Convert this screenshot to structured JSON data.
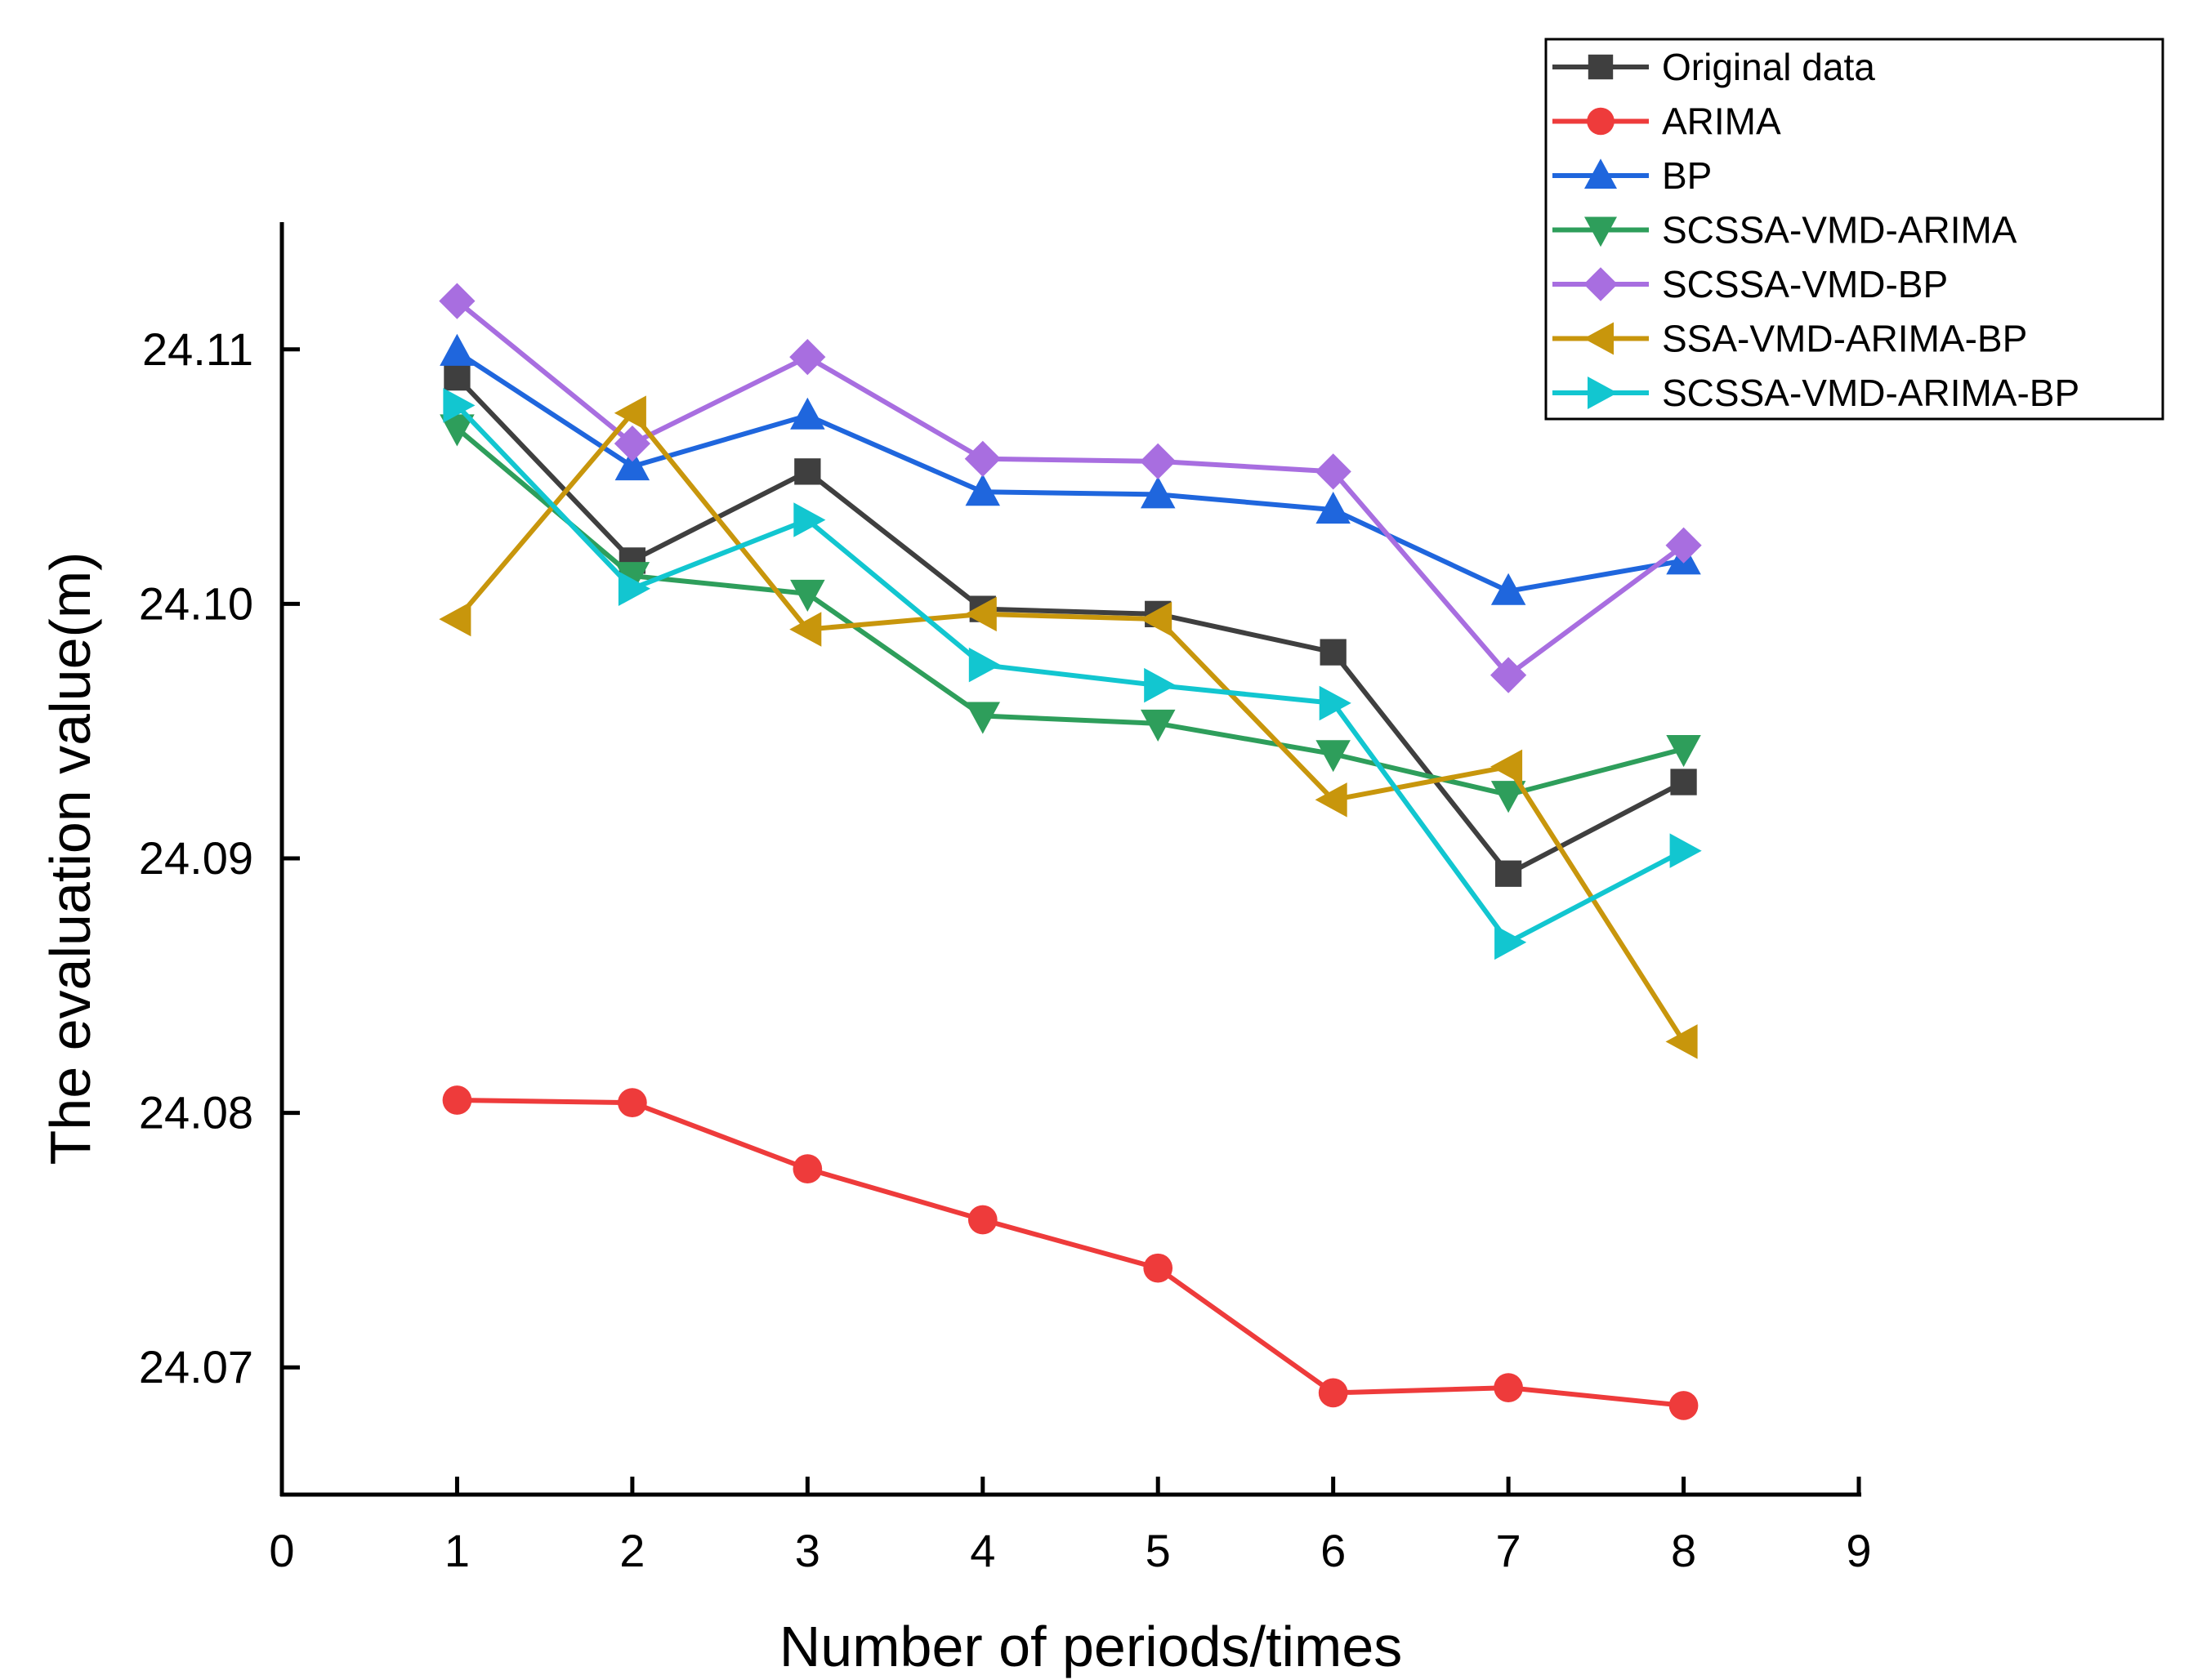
{
  "chart_data": {
    "type": "line",
    "title": "",
    "xlabel": "Number of periods/times",
    "ylabel": "The evaluation value(m)",
    "xlim": [
      0,
      9
    ],
    "ylim": [
      24.065,
      24.115
    ],
    "xticks": [
      0,
      1,
      2,
      3,
      4,
      5,
      6,
      7,
      8,
      9
    ],
    "xtick_labels": [
      "0",
      "1",
      "2",
      "3",
      "4",
      "5",
      "6",
      "7",
      "8",
      "9"
    ],
    "yticks": [
      24.07,
      24.08,
      24.09,
      24.1,
      24.11
    ],
    "ytick_labels": [
      "24.07",
      "24.08",
      "24.09",
      "24.10",
      "24.11"
    ],
    "grid": false,
    "legend_position": "top-right",
    "x": [
      1,
      2,
      3,
      4,
      5,
      6,
      7,
      8
    ],
    "series": [
      {
        "name": "Original data",
        "marker": "square",
        "color": "#3f3f3f",
        "values": [
          24.1089,
          24.1017,
          24.1052,
          24.0998,
          24.0996,
          24.0981,
          24.0894,
          24.093
        ]
      },
      {
        "name": "ARIMA",
        "marker": "circle",
        "color": "#ee3b3b",
        "values": [
          24.0805,
          24.0804,
          24.0778,
          24.0758,
          24.0739,
          24.069,
          24.0692,
          24.0685
        ]
      },
      {
        "name": "BP",
        "marker": "triangle-up",
        "color": "#1f66dd",
        "values": [
          24.1099,
          24.1054,
          24.1074,
          24.1044,
          24.1043,
          24.1037,
          24.1005,
          24.1017
        ]
      },
      {
        "name": "SCSSA-VMD-ARIMA",
        "marker": "triangle-down",
        "color": "#2e9e5b",
        "values": [
          24.1069,
          24.1011,
          24.1004,
          24.0956,
          24.0953,
          24.0941,
          24.0925,
          24.0943
        ]
      },
      {
        "name": "SCSSA-VMD-BP",
        "marker": "diamond",
        "color": "#a86ee0",
        "values": [
          24.1119,
          24.1063,
          24.1097,
          24.1057,
          24.1056,
          24.1052,
          24.0972,
          24.1023
        ]
      },
      {
        "name": "SSA-VMD-ARIMA-BP",
        "marker": "triangle-left",
        "color": "#c8960c",
        "values": [
          24.0994,
          24.1075,
          24.099,
          24.0996,
          24.0994,
          24.0923,
          24.0936,
          24.0828
        ]
      },
      {
        "name": "SCSSA-VMD-ARIMA-BP",
        "marker": "triangle-right",
        "color": "#12c6d0",
        "values": [
          24.1078,
          24.1006,
          24.1033,
          24.0976,
          24.0968,
          24.0961,
          24.0867,
          24.0903
        ]
      }
    ]
  }
}
